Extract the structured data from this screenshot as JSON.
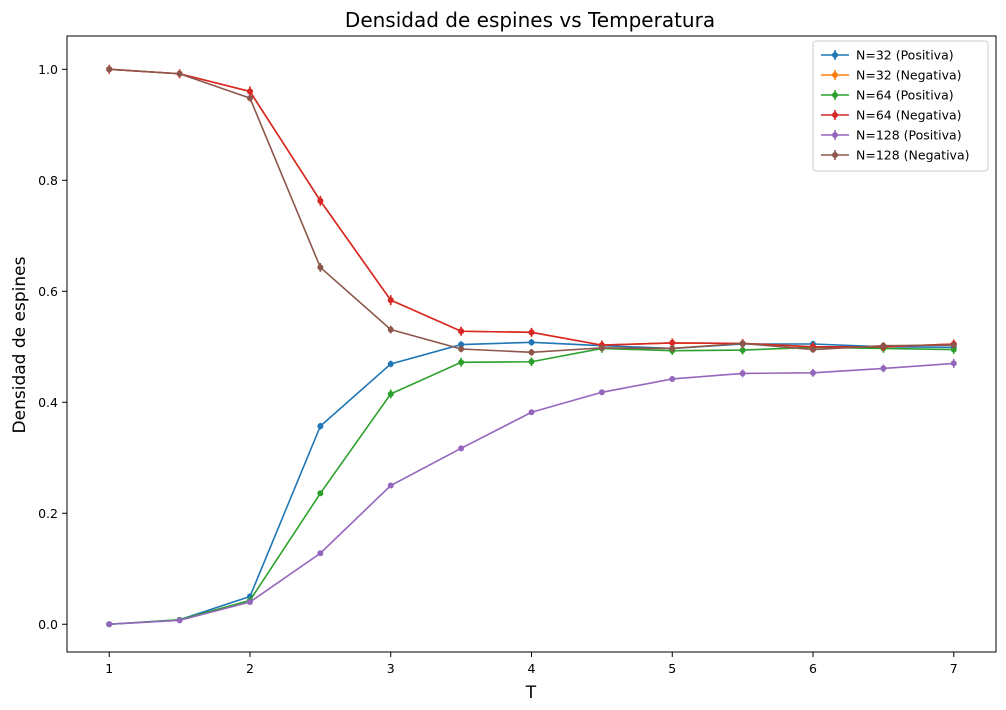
{
  "chart_data": {
    "type": "line",
    "title": "Densidad de espines vs Temperatura",
    "xlabel": "T",
    "ylabel": "Densidad de espines",
    "xlim": [
      0.7,
      7.3
    ],
    "ylim": [
      -0.05,
      1.06
    ],
    "xticks": [
      1,
      2,
      3,
      4,
      5,
      6,
      7
    ],
    "yticks": [
      0.0,
      0.2,
      0.4,
      0.6,
      0.8,
      1.0
    ],
    "ytick_labels": [
      "0.0",
      "0.2",
      "0.4",
      "0.6",
      "0.8",
      "1.0"
    ],
    "legend_position": "top-right",
    "x": [
      1,
      1.5,
      2,
      2.5,
      3,
      3.5,
      4,
      4.5,
      5,
      5.5,
      6,
      6.5,
      7
    ],
    "series": [
      {
        "name": "N=32 (Positiva)",
        "color": "#1f77b4",
        "values": [
          0.0,
          0.008,
          0.05,
          0.357,
          0.469,
          0.504,
          0.508,
          0.502,
          0.497,
          0.505,
          0.505,
          0.5,
          0.499
        ],
        "errors": [
          0.004,
          0.003,
          0.005,
          0.006,
          0.006,
          0.006,
          0.006,
          0.006,
          0.006,
          0.006,
          0.006,
          0.006,
          0.006
        ]
      },
      {
        "name": "N=32 (Negativa)",
        "color": "#ff7f0e",
        "values": [
          1.0,
          0.992,
          0.96,
          0.763,
          0.584,
          0.528,
          0.526,
          0.503,
          0.507,
          0.506,
          0.5,
          0.5,
          0.505
        ],
        "errors": [
          0.008,
          0.008,
          0.009,
          0.009,
          0.009,
          0.008,
          0.008,
          0.008,
          0.008,
          0.008,
          0.008,
          0.008,
          0.008
        ]
      },
      {
        "name": "N=64 (Positiva)",
        "color": "#2ca02c",
        "values": [
          0.0,
          0.008,
          0.043,
          0.236,
          0.415,
          0.472,
          0.473,
          0.497,
          0.493,
          0.494,
          0.499,
          0.497,
          0.495
        ],
        "errors": [
          0.004,
          0.003,
          0.004,
          0.005,
          0.008,
          0.008,
          0.008,
          0.008,
          0.008,
          0.008,
          0.008,
          0.008,
          0.008
        ]
      },
      {
        "name": "N=64 (Negativa)",
        "color": "#d62728",
        "values": [
          1.0,
          0.992,
          0.96,
          0.763,
          0.584,
          0.528,
          0.526,
          0.503,
          0.507,
          0.506,
          0.5,
          0.5,
          0.505
        ],
        "errors": [
          0.008,
          0.008,
          0.009,
          0.009,
          0.009,
          0.008,
          0.008,
          0.008,
          0.008,
          0.008,
          0.008,
          0.008,
          0.008
        ]
      },
      {
        "name": "N=128 (Positiva)",
        "color": "#9467bd",
        "values": [
          0.0,
          0.007,
          0.04,
          0.128,
          0.25,
          0.317,
          0.382,
          0.418,
          0.442,
          0.452,
          0.453,
          0.461,
          0.47
        ],
        "errors": [
          0.004,
          0.003,
          0.004,
          0.004,
          0.004,
          0.005,
          0.005,
          0.005,
          0.005,
          0.007,
          0.007,
          0.007,
          0.008
        ]
      },
      {
        "name": "N=128 (Negativa)",
        "color": "#8c564b",
        "values": [
          1.0,
          0.992,
          0.948,
          0.643,
          0.531,
          0.496,
          0.49,
          0.498,
          0.497,
          0.506,
          0.495,
          0.502,
          0.503
        ],
        "errors": [
          0.006,
          0.006,
          0.006,
          0.008,
          0.007,
          0.006,
          0.006,
          0.006,
          0.006,
          0.006,
          0.006,
          0.006,
          0.006
        ]
      }
    ]
  }
}
